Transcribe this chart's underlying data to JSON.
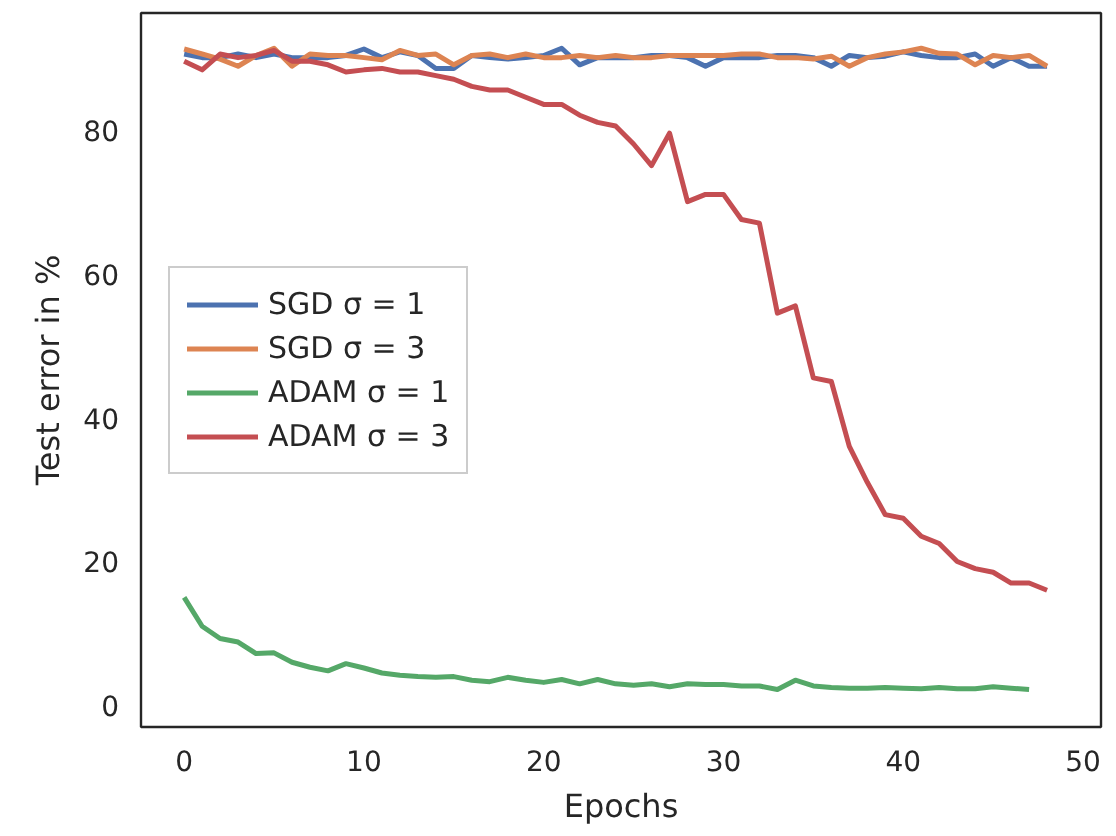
{
  "chart_data": {
    "type": "line",
    "xlabel": "Epochs",
    "ylabel": "Test error in %",
    "xlim": [
      -2.4,
      51
    ],
    "ylim": [
      -3,
      96.2
    ],
    "xticks": [
      0,
      10,
      20,
      30,
      40,
      50
    ],
    "yticks": [
      0,
      20,
      40,
      60,
      80
    ],
    "grid": false,
    "legend": "left",
    "line_style": "solid",
    "marker": "none",
    "x": [
      0,
      1,
      2,
      3,
      4,
      5,
      6,
      7,
      8,
      9,
      10,
      11,
      12,
      13,
      14,
      15,
      16,
      17,
      18,
      19,
      20,
      21,
      22,
      23,
      24,
      25,
      26,
      27,
      28,
      29,
      30,
      31,
      32,
      33,
      34,
      35,
      36,
      37,
      38,
      39,
      40,
      41,
      42,
      43,
      44,
      45,
      46,
      47,
      48
    ],
    "series": [
      {
        "name": "SGD σ = 1",
        "color": "#4c72b0",
        "values": [
          90.5,
          90,
          90,
          90.5,
          90,
          90.5,
          90,
          90,
          90,
          90.3,
          91.2,
          90,
          90.8,
          90.3,
          88.5,
          88.5,
          90.3,
          90,
          89.8,
          90,
          90.3,
          91.3,
          89,
          90,
          90,
          90,
          90.3,
          90.3,
          90,
          88.8,
          90,
          90,
          90,
          90.3,
          90.3,
          90,
          88.8,
          90.3,
          90,
          90.2,
          90.8,
          90.3,
          90,
          90,
          90.5,
          88.8,
          90,
          88.8,
          88.8
        ]
      },
      {
        "name": "SGD σ = 3",
        "color": "#dd8452",
        "values": [
          91.2,
          90.5,
          89.8,
          88.8,
          90.3,
          91.3,
          88.8,
          90.5,
          90.3,
          90.3,
          90,
          89.7,
          91,
          90.3,
          90.5,
          89,
          90.3,
          90.5,
          90,
          90.5,
          90,
          90,
          90.3,
          90,
          90.3,
          90,
          90,
          90.3,
          90.3,
          90.3,
          90.3,
          90.5,
          90.5,
          90,
          90,
          89.8,
          90.2,
          88.8,
          90,
          90.5,
          90.8,
          91.3,
          90.6,
          90.5,
          89,
          90.3,
          90,
          90.3,
          88.8
        ]
      },
      {
        "name": "ADAM σ = 1",
        "color": "#55a868",
        "values": [
          15,
          11,
          9.3,
          8.8,
          7.2,
          7.3,
          6,
          5.3,
          4.8,
          5.8,
          5.2,
          4.5,
          4.2,
          4,
          3.9,
          4,
          3.5,
          3.3,
          3.9,
          3.5,
          3.2,
          3.6,
          3,
          3.6,
          3,
          2.8,
          3,
          2.6,
          3,
          2.9,
          2.9,
          2.7,
          2.7,
          2.2,
          3.5,
          2.7,
          2.5,
          2.4,
          2.4,
          2.5,
          2.4,
          2.3,
          2.5,
          2.3,
          2.3,
          2.6,
          2.4,
          2.2,
          null
        ]
      },
      {
        "name": "ADAM σ = 3",
        "color": "#c44e52",
        "values": [
          89.5,
          88.3,
          90.5,
          90,
          90.3,
          91,
          89.5,
          89.5,
          89,
          88,
          88.3,
          88.5,
          88,
          88,
          87.5,
          87,
          86,
          85.5,
          85.5,
          84.5,
          83.5,
          83.5,
          82,
          81,
          80.5,
          78,
          75,
          79.5,
          70,
          71,
          71,
          67.5,
          67,
          54.5,
          55.5,
          45.5,
          45,
          36,
          31,
          26.5,
          26,
          23.5,
          22.5,
          20,
          19,
          18.5,
          17,
          17,
          16
        ]
      }
    ]
  }
}
